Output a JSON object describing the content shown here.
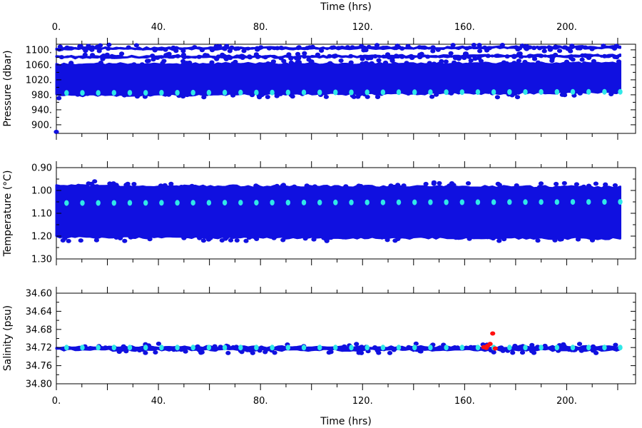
{
  "chart_data": [
    {
      "type": "scatter",
      "panel": "pressure",
      "xlabel_top": "Time (hrs)",
      "ylabel": "Pressure (dbar)",
      "x_range": [
        0,
        227
      ],
      "ylim": [
        1115,
        877
      ],
      "y_inverted": true,
      "x_ticks": [
        0,
        40,
        80,
        120,
        160,
        200
      ],
      "x_tick_labels": [
        "0.",
        "40.",
        "80.",
        "120.",
        "160.",
        "200."
      ],
      "y_ticks": [
        900,
        940,
        980,
        1020,
        1060,
        1100
      ],
      "y_tick_labels": [
        "900.",
        "940.",
        "980.",
        "1020.",
        "1060.",
        "1100."
      ],
      "series": [
        {
          "color": "#1010e0",
          "bands": [
            {
              "x": [
                0,
                221
              ],
              "y_top": [
                975,
                983
              ],
              "y_bottom": [
                1065,
                1068
              ]
            },
            {
              "x": [
                0,
                221
              ],
              "y_top": [
                1077,
                1081
              ],
              "y_bottom": [
                1084,
                1087
              ]
            },
            {
              "x": [
                0,
                221
              ],
              "y_top": [
                1100,
                1104
              ],
              "y_bottom": [
                1106,
                1110
              ]
            }
          ],
          "points": [
            {
              "x": 0,
              "y": 881
            },
            {
              "x": 1,
              "y": 971
            },
            {
              "x": 16,
              "y": 1108
            }
          ]
        },
        {
          "color": "#30e8e8",
          "x_start": 4,
          "x_end": 221,
          "x_step": 6.2,
          "y_start": 985,
          "y_end": 988
        }
      ]
    },
    {
      "type": "scatter",
      "panel": "temperature",
      "ylabel": "Temperature (°C)",
      "x_range": [
        0,
        227
      ],
      "ylim": [
        0.9,
        1.3
      ],
      "x_ticks": [
        0,
        40,
        80,
        120,
        160,
        200
      ],
      "y_ticks": [
        0.9,
        1.0,
        1.1,
        1.2,
        1.3
      ],
      "y_tick_labels": [
        "0.90",
        "1.00",
        "1.10",
        "1.20",
        "1.30"
      ],
      "series": [
        {
          "color": "#1010e0",
          "bands": [
            {
              "x": [
                0,
                221
              ],
              "y_top": [
                1.21,
                1.215
              ],
              "y_bottom": [
                0.975,
                0.98
              ]
            }
          ],
          "points": [
            {
              "x": 15,
              "y": 0.96
            },
            {
              "x": 148,
              "y": 0.965
            }
          ]
        },
        {
          "color": "#30e8e8",
          "x_start": 4,
          "x_end": 221,
          "x_step": 6.2,
          "y_start": 1.055,
          "y_end": 1.05
        }
      ]
    },
    {
      "type": "scatter",
      "panel": "salinity",
      "xlabel": "Time (hrs)",
      "ylabel": "Salinity (psu)",
      "x_range": [
        0,
        227
      ],
      "ylim": [
        34.6,
        34.8
      ],
      "x_ticks": [
        0,
        40,
        80,
        120,
        160,
        200
      ],
      "x_tick_labels": [
        "0.",
        "40.",
        "80.",
        "120.",
        "160.",
        "200."
      ],
      "y_ticks": [
        34.6,
        34.64,
        34.68,
        34.72,
        34.76,
        34.8
      ],
      "y_tick_labels": [
        "34.60",
        "34.64",
        "34.68",
        "34.72",
        "34.76",
        "34.80"
      ],
      "series": [
        {
          "color": "#1010e0",
          "bands": [
            {
              "x": [
                0,
                221
              ],
              "y_top": [
                34.728,
                34.728
              ],
              "y_bottom": [
                34.716,
                34.716
              ]
            }
          ],
          "points": []
        },
        {
          "color": "#30e8e8",
          "x_start": 4,
          "x_end": 221,
          "x_step": 6.2,
          "y_start": 34.72,
          "y_end": 34.72
        },
        {
          "color": "#ff1010",
          "points": [
            {
              "x": 167.5,
              "y": 34.719
            },
            {
              "x": 169,
              "y": 34.716
            },
            {
              "x": 170,
              "y": 34.712
            },
            {
              "x": 171,
              "y": 34.689
            },
            {
              "x": 172,
              "y": 34.722
            },
            {
              "x": 168.5,
              "y": 34.721
            }
          ]
        }
      ]
    }
  ]
}
